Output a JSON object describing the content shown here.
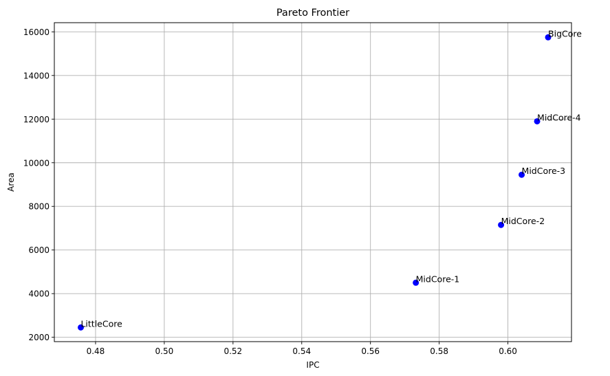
{
  "chart_data": {
    "type": "scatter",
    "title": "Pareto Frontier",
    "xlabel": "IPC",
    "ylabel": "Area",
    "xlim": [
      0.468,
      0.6185
    ],
    "ylim": [
      1800,
      16420
    ],
    "xticks": [
      0.48,
      0.5,
      0.52,
      0.54,
      0.56,
      0.58,
      0.6
    ],
    "xtick_labels": [
      "0.48",
      "0.50",
      "0.52",
      "0.54",
      "0.56",
      "0.58",
      "0.60"
    ],
    "yticks": [
      2000,
      4000,
      6000,
      8000,
      10000,
      12000,
      14000,
      16000
    ],
    "ytick_labels": [
      "2000",
      "4000",
      "6000",
      "8000",
      "10000",
      "12000",
      "14000",
      "16000"
    ],
    "grid": true,
    "marker_color": "#0000ff",
    "points": [
      {
        "label": "LittleCore",
        "x": 0.4757,
        "y": 2450
      },
      {
        "label": "MidCore-1",
        "x": 0.5732,
        "y": 4500
      },
      {
        "label": "MidCore-2",
        "x": 0.598,
        "y": 7150
      },
      {
        "label": "MidCore-3",
        "x": 0.604,
        "y": 9450
      },
      {
        "label": "MidCore-4",
        "x": 0.6085,
        "y": 11900
      },
      {
        "label": "BigCore",
        "x": 0.6117,
        "y": 15750
      }
    ]
  }
}
